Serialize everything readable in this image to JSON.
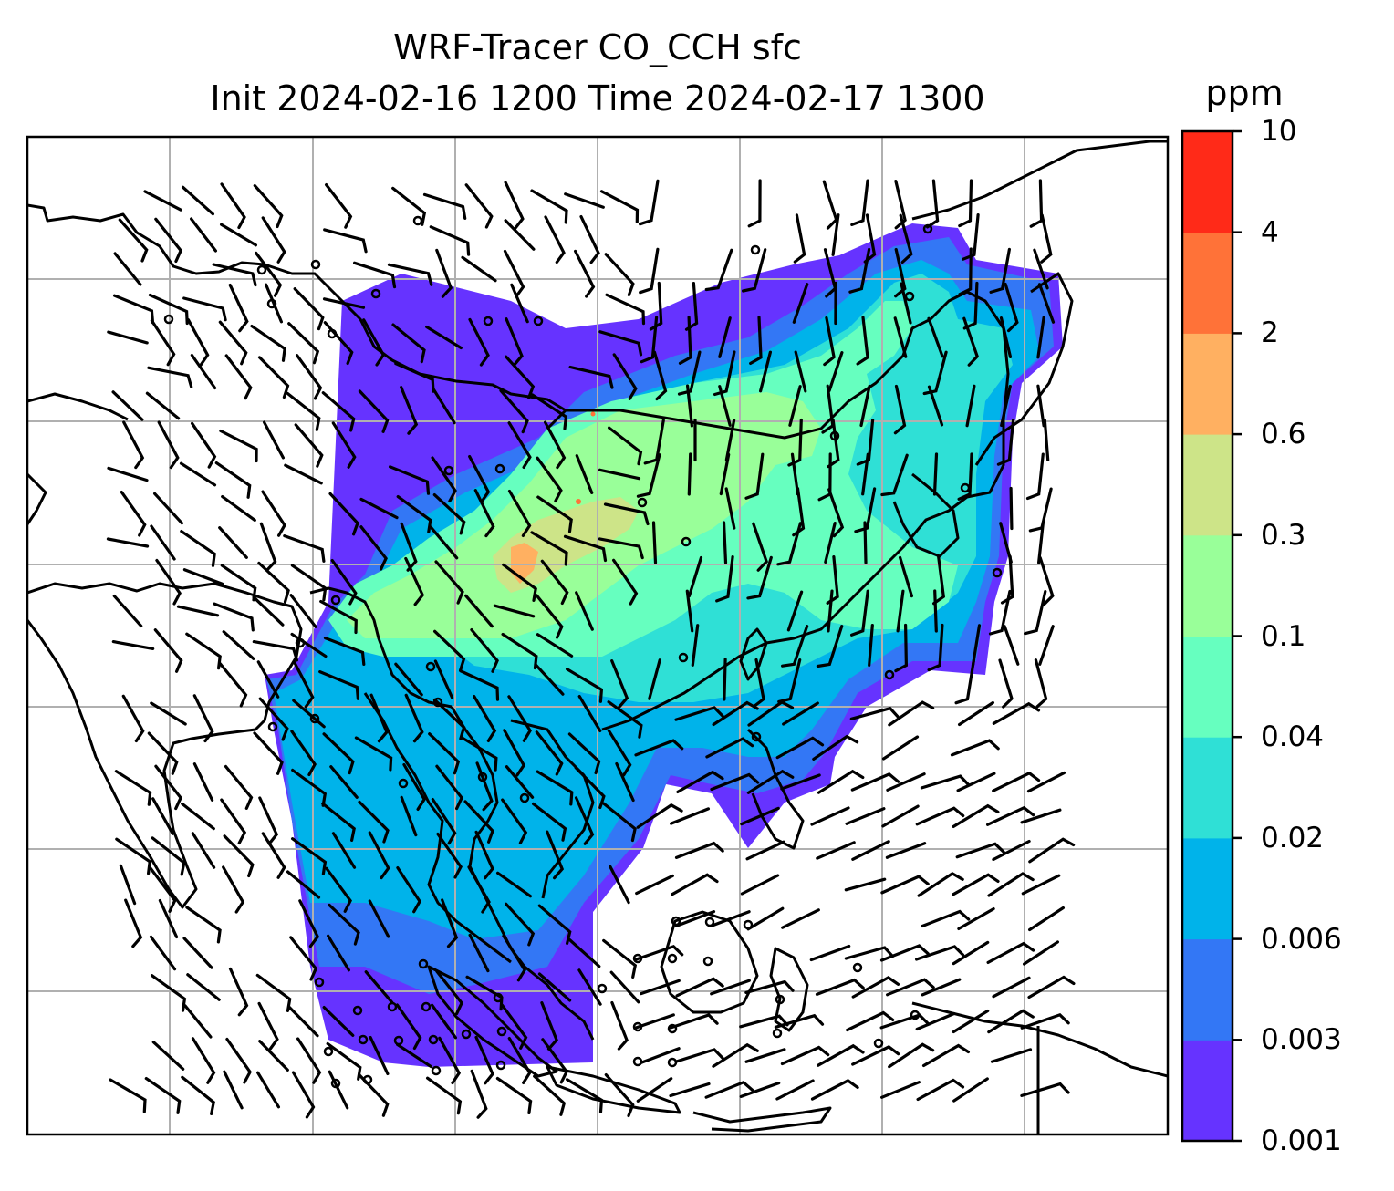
{
  "title_line1": "WRF-Tracer CO_CCH sfc",
  "title_line2": "Init 2024-02-16 1200 Time 2024-02-17 1300",
  "colorbar": {
    "units": "ppm",
    "tick_labels": [
      "0.001",
      "0.003",
      "0.006",
      "0.02",
      "0.04",
      "0.1",
      "0.3",
      "0.6",
      "2",
      "4",
      "10"
    ],
    "colors": [
      "#6633ff",
      "#3377f5",
      "#00b3ea",
      "#2fe0d6",
      "#66ffbf",
      "#99ff99",
      "#cde488",
      "#ffb061",
      "#ff7238",
      "#ff2a18"
    ]
  },
  "map": {
    "field": "CO_CCH",
    "level": "sfc",
    "overlays": [
      "coastline",
      "gridlines",
      "wind-barbs",
      "calm-circles"
    ],
    "gridline_color": "#b0b0b0",
    "coastline_color": "#000000"
  }
}
